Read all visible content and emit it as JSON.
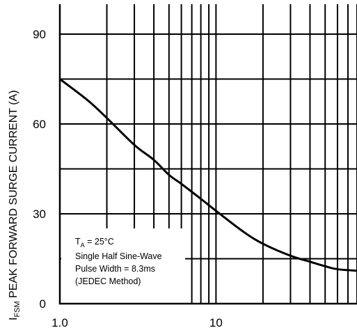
{
  "chart_data": {
    "type": "line",
    "title": "",
    "xlabel": "",
    "ylabel": {
      "symbol": "I",
      "subscript": "FSM",
      "text": " PEAK FORWARD SURGE CURRENT (A)"
    },
    "x_scale": "log",
    "xlim": [
      1,
      80
    ],
    "ylim": [
      0,
      100
    ],
    "x_tick_labels": [
      {
        "value": 1,
        "label": "1.0"
      },
      {
        "value": 10,
        "label": "10"
      }
    ],
    "y_tick_labels": [
      {
        "value": 0,
        "label": "0"
      },
      {
        "value": 30,
        "label": "30"
      },
      {
        "value": 60,
        "label": "60"
      },
      {
        "value": 90,
        "label": "90"
      }
    ],
    "x_gridlines": [
      1,
      2,
      3,
      4,
      5,
      6,
      7,
      8,
      9,
      10,
      20,
      30,
      40,
      50,
      60,
      70,
      80
    ],
    "y_gridlines": [
      15,
      30,
      45,
      60,
      75,
      90
    ],
    "grid": true,
    "legend": "none",
    "series": [
      {
        "x": [
          1,
          1.5,
          2,
          3,
          4,
          5,
          6,
          8,
          10,
          15,
          20,
          30,
          40,
          50,
          60,
          80
        ],
        "values": [
          75,
          68,
          62,
          53,
          48,
          43,
          40,
          35,
          31,
          24,
          20,
          16,
          14,
          12.5,
          11.5,
          11
        ]
      }
    ],
    "annotation": {
      "line1_symbol": "T",
      "line1_subscript": "A",
      "line1_text": " = 25°C",
      "line2": "Single Half Sine-Wave",
      "line3": "Pulse Width = 8.3ms",
      "line4": "(JEDEC Method)"
    },
    "colors": {
      "line": "#000000",
      "grid": "#000000",
      "background": "#ffffff"
    }
  }
}
